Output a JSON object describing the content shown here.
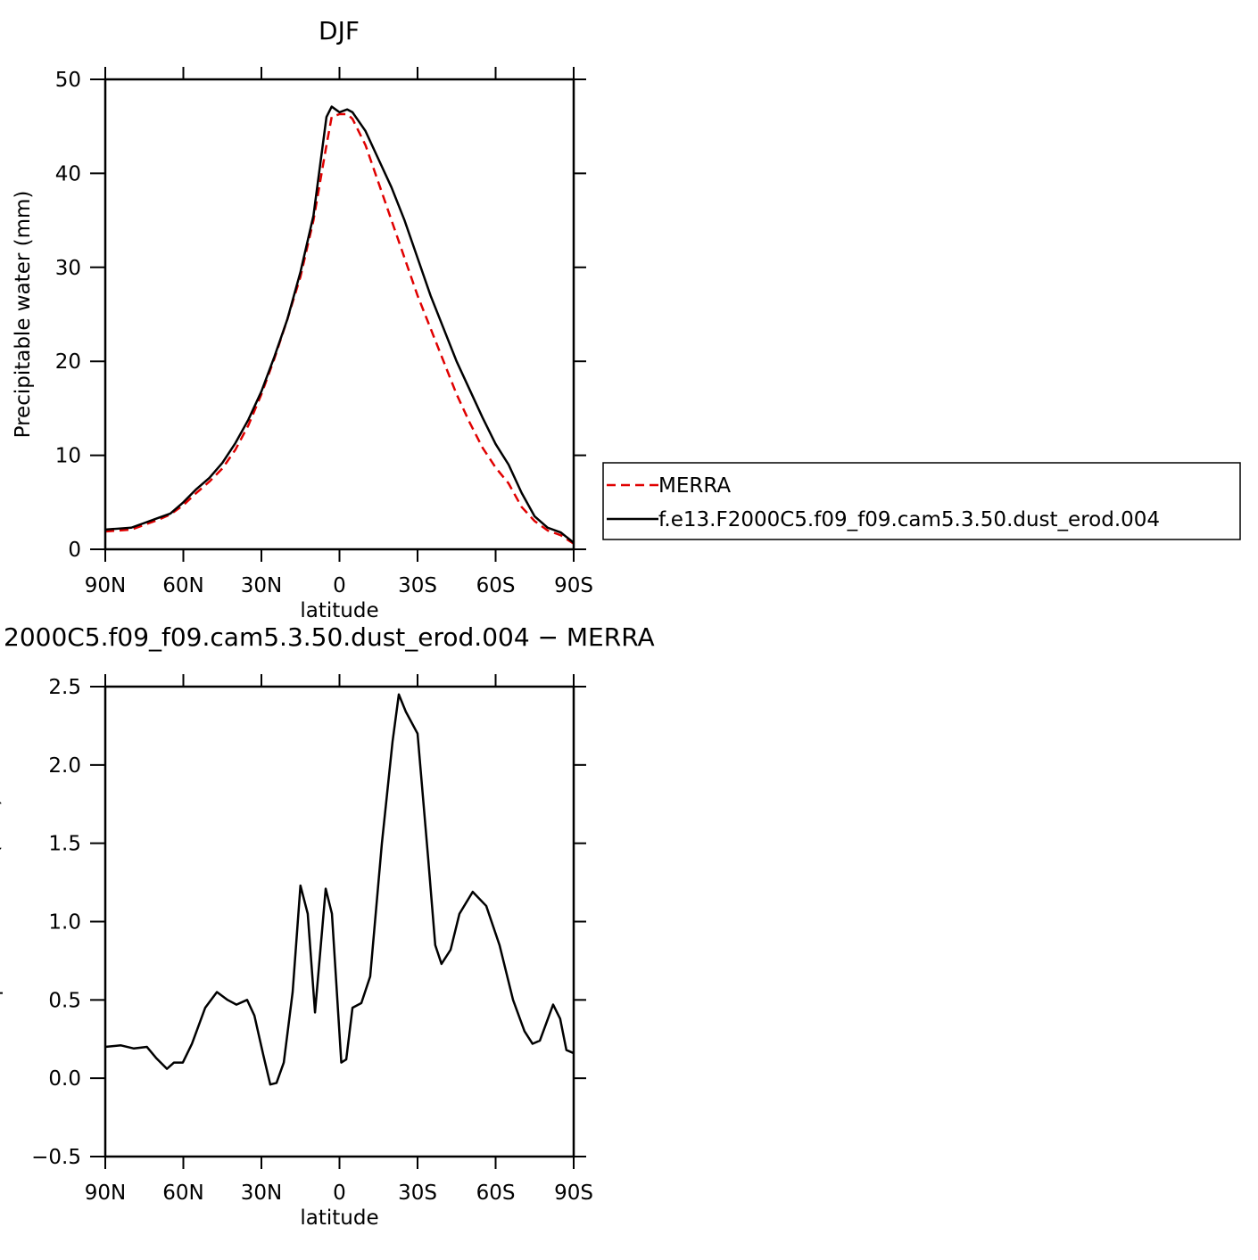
{
  "chart_data": [
    {
      "type": "line",
      "title": "DJF",
      "xlabel": "latitude",
      "ylabel": "Precipitable water (mm)",
      "x": [
        90,
        85,
        80,
        75,
        70,
        65,
        60,
        55,
        50,
        45,
        40,
        35,
        30,
        25,
        20,
        15,
        10,
        5,
        3,
        0,
        -3,
        -5,
        -10,
        -15,
        -20,
        -25,
        -30,
        -35,
        -40,
        -45,
        -50,
        -55,
        -60,
        -65,
        -70,
        -75,
        -80,
        -85,
        -90
      ],
      "series": [
        {
          "name": "MERRA",
          "color": "#e00000",
          "linestyle": "dashed",
          "values": [
            1.9,
            2.0,
            2.1,
            2.6,
            3.1,
            3.7,
            4.7,
            6.0,
            7.2,
            8.6,
            10.6,
            13.2,
            16.5,
            20.3,
            24.5,
            29.0,
            35.0,
            43.0,
            46.0,
            46.3,
            46.3,
            45.8,
            43.0,
            39.0,
            35.0,
            31.0,
            27.0,
            23.5,
            20.0,
            16.5,
            13.5,
            10.8,
            8.7,
            7.0,
            4.5,
            3.0,
            2.0,
            1.5,
            0.6
          ]
        },
        {
          "name": "f.e13.F2000C5.f09_f09.cam5.3.50.dust_erod.004",
          "color": "#000000",
          "linestyle": "solid",
          "values": [
            2.1,
            2.2,
            2.3,
            2.8,
            3.3,
            3.8,
            5.0,
            6.4,
            7.6,
            9.2,
            11.3,
            13.8,
            16.8,
            20.5,
            24.5,
            29.5,
            35.5,
            46.0,
            47.1,
            46.5,
            46.8,
            46.5,
            44.5,
            41.5,
            38.5,
            35.0,
            31.0,
            27.0,
            23.5,
            20.0,
            17.0,
            14.0,
            11.2,
            9.0,
            6.0,
            3.5,
            2.3,
            1.8,
            0.7
          ]
        }
      ],
      "xlim": [
        90,
        -90
      ],
      "xticks": [
        {
          "value": 90,
          "label": "90N"
        },
        {
          "value": 60,
          "label": "60N"
        },
        {
          "value": 30,
          "label": "30N"
        },
        0,
        {
          "value": -30,
          "label": "30S"
        },
        {
          "value": -60,
          "label": "60S"
        },
        {
          "value": -90,
          "label": "90S"
        }
      ],
      "ylim": [
        0,
        50
      ],
      "yticks": [
        0,
        10,
        20,
        30,
        40,
        50
      ],
      "legend": "right"
    },
    {
      "type": "line",
      "title": "2000C5.f09_f09.cam5.3.50.dust_erod.004 − MERRA",
      "xlabel": "latitude",
      "ylabel": "Precipitable water (mm)",
      "x": [
        90,
        84,
        79,
        74,
        70.5,
        66.3,
        63.6,
        60.2,
        56.7,
        51.6,
        47.1,
        43,
        39.6,
        35.5,
        32.7,
        29.3,
        26.6,
        24.2,
        21.4,
        18,
        15,
        12.2,
        9.4,
        5.3,
        2.9,
        -0.7,
        -2.6,
        -5,
        -8.4,
        -11.8,
        -16.3,
        -20.4,
        -22.8,
        -25.5,
        -30,
        -34.1,
        -36.8,
        -39.2,
        -42.7,
        -46.1,
        -51.2,
        -56.4,
        -61.5,
        -66.7,
        -71.1,
        -74.2,
        -77,
        -82.1,
        -84.8,
        -87.2,
        -90
      ],
      "series": [
        {
          "color": "#000000",
          "linestyle": "solid",
          "values": [
            0.2,
            0.21,
            0.19,
            0.2,
            0.13,
            0.06,
            0.1,
            0.1,
            0.22,
            0.45,
            0.55,
            0.5,
            0.47,
            0.5,
            0.4,
            0.15,
            -0.04,
            -0.03,
            0.1,
            0.55,
            1.23,
            1.05,
            0.42,
            1.21,
            1.05,
            0.1,
            0.12,
            0.45,
            0.48,
            0.65,
            1.5,
            2.15,
            2.45,
            2.34,
            2.2,
            1.4,
            0.85,
            0.73,
            0.82,
            1.05,
            1.19,
            1.1,
            0.85,
            0.5,
            0.3,
            0.22,
            0.24,
            0.47,
            0.38,
            0.18,
            0.16
          ]
        }
      ],
      "xlim": [
        90,
        -90
      ],
      "xticks": [
        {
          "value": 90,
          "label": "90N"
        },
        {
          "value": 60,
          "label": "60N"
        },
        {
          "value": 30,
          "label": "30N"
        },
        0,
        {
          "value": -30,
          "label": "30S"
        },
        {
          "value": -60,
          "label": "60S"
        },
        {
          "value": -90,
          "label": "90S"
        }
      ],
      "ylim": [
        -0.5,
        2.5
      ],
      "yticks": [
        {
          "value": -0.5,
          "label": "−0.5"
        },
        {
          "value": 0,
          "label": "0.0"
        },
        0.5,
        {
          "value": 1,
          "label": "1.0"
        },
        1.5,
        {
          "value": 2,
          "label": "2.0"
        },
        2.5
      ]
    }
  ]
}
